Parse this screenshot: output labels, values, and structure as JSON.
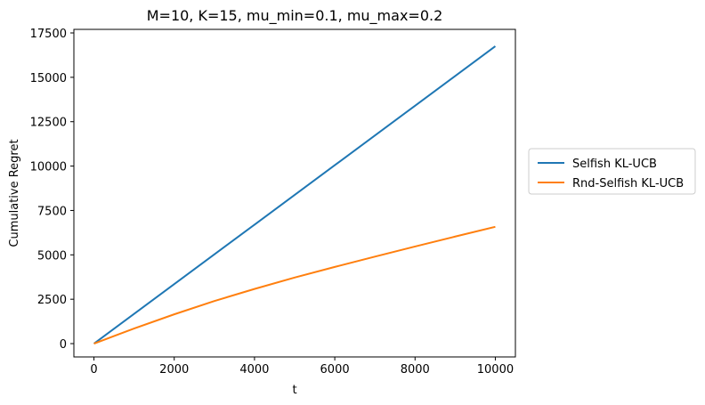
{
  "chart_data": {
    "type": "line",
    "title": "M=10, K=15, mu_min=0.1, mu_max=0.2",
    "xlabel": "t",
    "ylabel": "Cumulative Regret",
    "xlim": [
      -500,
      10500
    ],
    "ylim": [
      -750,
      17700
    ],
    "xticks": [
      0,
      2000,
      4000,
      6000,
      8000,
      10000
    ],
    "yticks": [
      0,
      2500,
      5000,
      7500,
      10000,
      12500,
      15000,
      17500
    ],
    "grid": false,
    "legend_placement": "outside-right",
    "series": [
      {
        "name": "Selfish KL-UCB",
        "color": "#1f77b4",
        "x": [
          0,
          2000,
          4000,
          6000,
          8000,
          10000
        ],
        "y": [
          0,
          3350,
          6700,
          10050,
          13400,
          16750
        ]
      },
      {
        "name": "Rnd-Selfish KL-UCB",
        "color": "#ff7f0e",
        "x": [
          0,
          1000,
          2000,
          3000,
          4000,
          5000,
          6000,
          7000,
          8000,
          9000,
          10000
        ],
        "y": [
          0,
          850,
          1650,
          2400,
          3080,
          3720,
          4320,
          4900,
          5470,
          6030,
          6580
        ]
      }
    ]
  }
}
